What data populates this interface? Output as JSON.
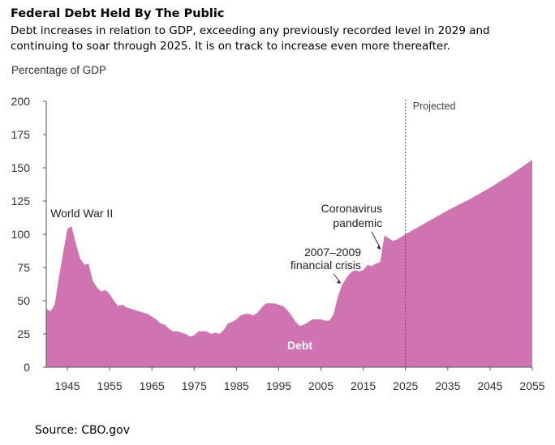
{
  "header": {
    "title": "Federal Debt Held By The Public",
    "subtitle": "Debt increases in relation to GDP, exceeding any previously recorded level in 2029 and continuing to soar through 2025. It is on track to increase even more thereafter."
  },
  "footer": {
    "source": "Source: CBO.gov"
  },
  "chart_data": {
    "type": "area",
    "title": "Federal Debt Held By The Public",
    "ylabel": "Percentage of GDP",
    "xlabel": "",
    "xlim": [
      1940,
      2055
    ],
    "ylim": [
      0,
      200
    ],
    "yticks": [
      0,
      25,
      50,
      75,
      100,
      125,
      150,
      175,
      200
    ],
    "xticks": [
      1945,
      1955,
      1965,
      1975,
      1985,
      1995,
      2005,
      2015,
      2025,
      2035,
      2045,
      2055
    ],
    "color": "#cf74b1",
    "series": [
      {
        "name": "Debt",
        "x": [
          1940,
          1941,
          1942,
          1943,
          1944,
          1945,
          1946,
          1947,
          1948,
          1949,
          1950,
          1951,
          1952,
          1953,
          1954,
          1955,
          1956,
          1957,
          1958,
          1959,
          1960,
          1961,
          1962,
          1963,
          1964,
          1965,
          1966,
          1967,
          1968,
          1969,
          1970,
          1971,
          1972,
          1973,
          1974,
          1975,
          1976,
          1977,
          1978,
          1979,
          1980,
          1981,
          1982,
          1983,
          1984,
          1985,
          1986,
          1987,
          1988,
          1989,
          1990,
          1991,
          1992,
          1993,
          1994,
          1995,
          1996,
          1997,
          1998,
          1999,
          2000,
          2001,
          2002,
          2003,
          2004,
          2005,
          2006,
          2007,
          2008,
          2009,
          2010,
          2011,
          2012,
          2013,
          2014,
          2015,
          2016,
          2017,
          2018,
          2019,
          2020,
          2021,
          2022,
          2023,
          2024,
          2025,
          2030,
          2035,
          2040,
          2045,
          2050,
          2055
        ],
        "values": [
          44,
          42,
          47,
          68,
          86,
          104,
          106,
          93,
          82,
          77,
          78,
          65,
          60,
          57,
          58,
          55,
          50,
          46,
          47,
          45,
          44,
          43,
          42,
          41,
          40,
          38,
          36,
          33,
          32,
          29,
          27,
          27,
          26,
          25,
          23,
          24,
          27,
          27,
          27,
          25,
          26,
          25,
          28,
          33,
          34,
          36,
          39,
          40,
          40,
          39,
          41,
          45,
          48,
          48,
          48,
          47,
          46,
          43,
          39,
          34,
          31,
          32,
          34,
          36,
          36,
          36,
          35,
          35,
          40,
          53,
          62,
          67,
          71,
          73,
          72,
          73,
          77,
          76,
          78,
          79,
          99,
          97,
          95,
          96,
          98,
          100,
          109,
          118,
          126,
          135,
          145,
          156
        ]
      }
    ],
    "annotations": {
      "ww2": "World War II",
      "crisis_line1": "2007–2009",
      "crisis_line2": "financial crisis",
      "covid_line1": "Coronavirus",
      "covid_line2": "pandemic",
      "projected": "Projected",
      "series_label": "Debt"
    },
    "projection_start_year": 2025
  }
}
